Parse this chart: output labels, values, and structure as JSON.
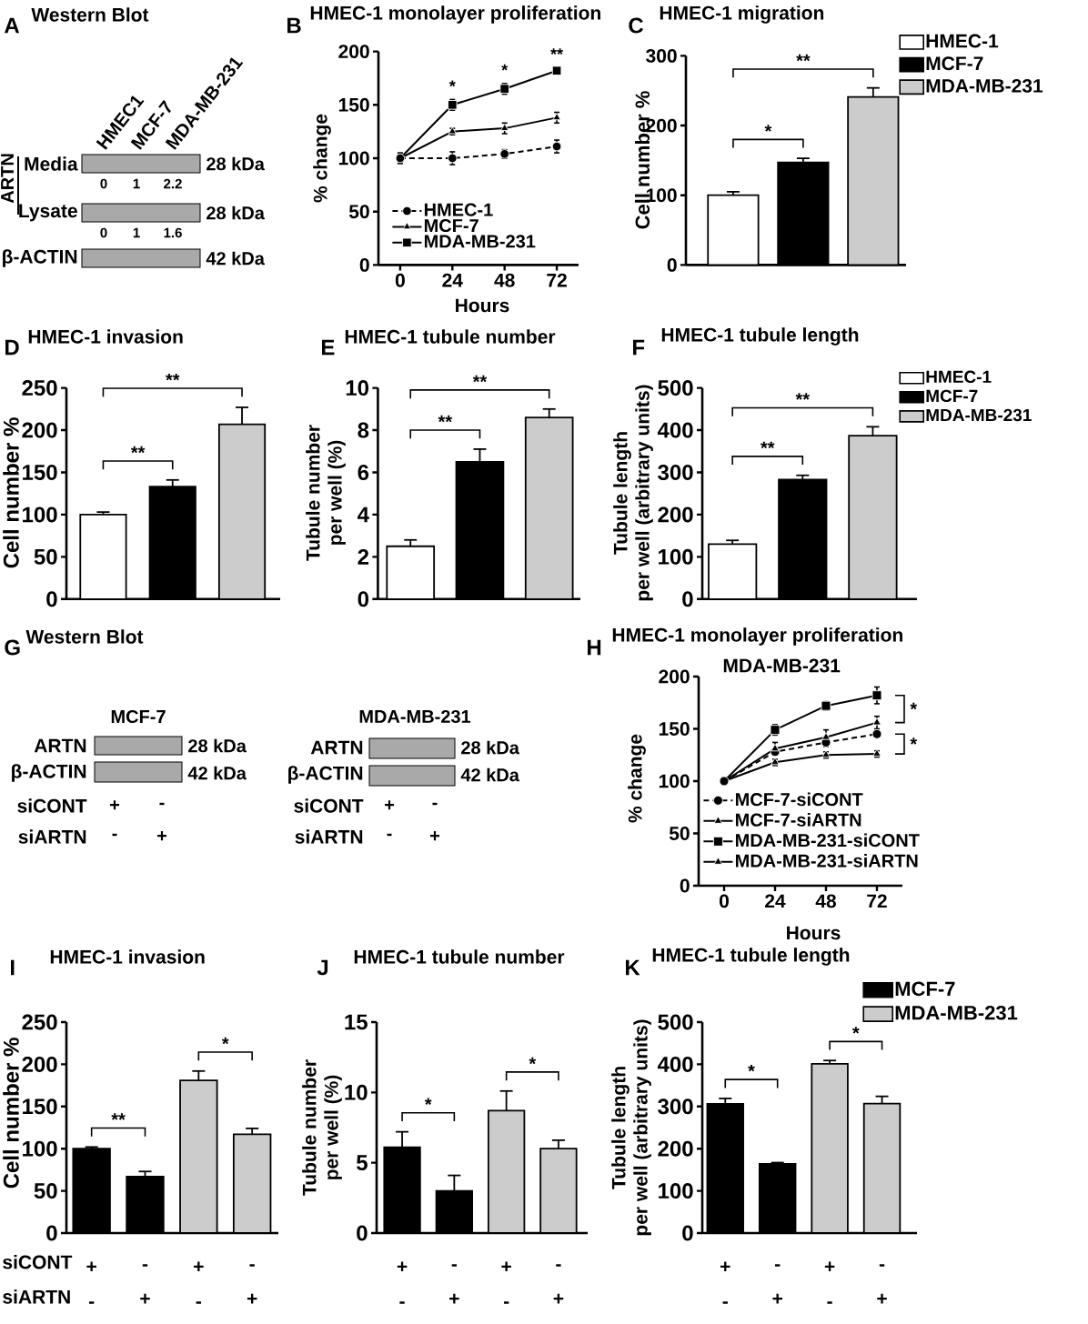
{
  "chart_data": [
    {
      "type": "other",
      "title": "Western Blot",
      "annotations": [
        "A",
        "HMEC1",
        "MCF-7",
        "MDA-MB-231",
        "ARTN",
        "Media",
        "28 kDa",
        "0",
        "1",
        "2.2",
        "Lysate",
        "28 kDa",
        "0",
        "1",
        "1.6",
        "β-ACTIN",
        "42 kDa"
      ]
    },
    {
      "type": "line",
      "title": "HMEC-1 monolayer proliferation",
      "xlabel": "Hours",
      "ylabel": "% change",
      "x": [
        0,
        24,
        48,
        72
      ],
      "xlim": [
        -10,
        82
      ],
      "xticks": [
        0,
        24,
        48,
        72
      ],
      "ylim": [
        0,
        200
      ],
      "yticks": [
        0,
        50,
        100,
        150,
        200
      ],
      "legend": "bottom left",
      "series": [
        {
          "name": "HMEC-1",
          "color": "#000000",
          "values": [
            100,
            100,
            104,
            111
          ],
          "errors": [
            5,
            6,
            4,
            6
          ],
          "marker": "circle",
          "line_style": "dashed"
        },
        {
          "name": "MCF-7",
          "color": "#000000",
          "values": [
            100,
            125,
            128,
            138
          ],
          "errors": [
            3,
            3,
            5,
            5
          ],
          "marker": "triangle",
          "line_style": "solid"
        },
        {
          "name": "MDA-MB-231",
          "color": "#000000",
          "values": [
            100,
            150,
            165,
            182
          ],
          "errors": [
            3,
            5,
            5,
            3
          ],
          "marker": "square",
          "line_style": "solid"
        }
      ],
      "annotations": [
        "B",
        "*",
        "*",
        "**"
      ]
    },
    {
      "type": "bar",
      "title": "HMEC-1 migration",
      "ylabel": "Cell number %",
      "categories": [
        null,
        null,
        null
      ],
      "ylim": [
        0,
        300
      ],
      "yticks": [
        0,
        100,
        200,
        300
      ],
      "tick_labels": "y",
      "legend": "right",
      "series": [
        {
          "name": "HMEC-1",
          "color": "#ffffff",
          "values": [
            100,
            null,
            null
          ],
          "errors": [
            5,
            null,
            null
          ]
        },
        {
          "name": "MCF-7",
          "color": "#000000",
          "values": [
            null,
            147,
            null
          ],
          "errors": [
            null,
            6,
            null
          ]
        },
        {
          "name": "MDA-MB-231",
          "color": "#cccccc",
          "values": [
            null,
            null,
            241
          ],
          "errors": [
            null,
            null,
            13
          ]
        }
      ],
      "annotations": [
        "C",
        "*",
        "**"
      ]
    },
    {
      "type": "bar",
      "title": "HMEC-1 invasion",
      "ylabel": "Cell number %",
      "categories": [
        null,
        null,
        null
      ],
      "values": [
        100,
        133,
        207
      ],
      "errors": [
        3,
        8,
        20
      ],
      "colors": [
        "#ffffff",
        "#000000",
        "#cccccc"
      ],
      "ylim": [
        0,
        250
      ],
      "yticks": [
        0,
        50,
        100,
        150,
        200,
        250
      ],
      "tick_labels": "y",
      "annotations": [
        "D",
        "**",
        "**"
      ]
    },
    {
      "type": "bar",
      "title": "HMEC-1 tubule number",
      "ylabel": "Tubule number\nper well (%)",
      "categories": [
        null,
        null,
        null
      ],
      "values": [
        2.5,
        6.5,
        8.6
      ],
      "errors": [
        0.3,
        0.6,
        0.4
      ],
      "colors": [
        "#ffffff",
        "#000000",
        "#cccccc"
      ],
      "ylim": [
        0,
        10
      ],
      "yticks": [
        0,
        2,
        4,
        6,
        8,
        10
      ],
      "tick_labels": "y",
      "annotations": [
        "E",
        "**",
        "**"
      ]
    },
    {
      "type": "bar",
      "title": "HMEC-1 tubule length",
      "ylabel": "Tubule length\nper well (arbitrary units)",
      "categories": [
        null,
        null,
        null
      ],
      "ylim": [
        0,
        500
      ],
      "yticks": [
        0,
        100,
        200,
        300,
        400,
        500
      ],
      "tick_labels": "y",
      "legend": "right",
      "series": [
        {
          "name": "HMEC-1",
          "color": "#ffffff",
          "values": [
            130,
            null,
            null
          ],
          "errors": [
            9,
            null,
            null
          ]
        },
        {
          "name": "MCF-7",
          "color": "#000000",
          "values": [
            null,
            283,
            null
          ],
          "errors": [
            null,
            10,
            null
          ]
        },
        {
          "name": "MDA-MB-231",
          "color": "#cccccc",
          "values": [
            null,
            null,
            387
          ],
          "errors": [
            null,
            null,
            21
          ]
        }
      ],
      "annotations": [
        "F",
        "**",
        "**"
      ]
    },
    {
      "type": "other",
      "title": "Western Blot",
      "annotations": [
        "G",
        "MCF-7",
        "ARTN",
        "28 kDa",
        "β-ACTIN",
        "42 kDa",
        "siCONT",
        "+",
        "-",
        "siARTN",
        "-",
        "+",
        "MDA-MB-231",
        "ARTN",
        "28 kDa",
        "β-ACTIN",
        "42 kDa",
        "siCONT",
        "+",
        "-",
        "siARTN",
        "-",
        "+"
      ]
    },
    {
      "type": "line",
      "title": "HMEC-1 monolayer proliferation",
      "subtitle": "MDA-MB-231",
      "xlabel": "Hours",
      "ylabel": "% change",
      "x": [
        0,
        24,
        48,
        72
      ],
      "xlim": [
        -12,
        84
      ],
      "xticks": [
        0,
        24,
        48,
        72
      ],
      "ylim": [
        0,
        200
      ],
      "yticks": [
        0,
        50,
        100,
        150,
        200
      ],
      "legend": "bottom",
      "series": [
        {
          "name": "MCF-7-siCONT",
          "color": "#000000",
          "values": [
            100,
            128,
            137,
            145
          ],
          "errors": [
            3,
            3,
            4,
            2
          ],
          "marker": "circle",
          "line_style": "dashed"
        },
        {
          "name": "MCF-7-siARTN",
          "color": "#000000",
          "values": [
            100,
            118,
            125,
            126
          ],
          "errors": [
            3,
            3,
            3,
            3
          ],
          "marker": "triangle",
          "line_style": "solid"
        },
        {
          "name": "MDA-MB-231-siCONT",
          "color": "#000000",
          "values": [
            100,
            149,
            172,
            182
          ],
          "errors": [
            3,
            5,
            4,
            8
          ],
          "marker": "square",
          "line_style": "solid"
        },
        {
          "name": "MDA-MB-231-siARTN",
          "color": "#000000",
          "values": [
            100,
            131,
            142,
            156
          ],
          "errors": [
            3,
            6,
            7,
            6
          ],
          "marker": "triangle",
          "line_style": "solid"
        }
      ],
      "annotations": [
        "H",
        "*",
        "*"
      ]
    },
    {
      "type": "bar",
      "title": "HMEC-1 invasion",
      "xlabel": "siCONT\nsiARTN",
      "ylabel": "Cell number %",
      "categories": [
        "+\n-",
        "-\n+",
        "+\n-",
        "-\n+"
      ],
      "values": [
        100,
        67,
        181,
        117
      ],
      "errors": [
        2,
        6,
        11,
        7
      ],
      "colors": [
        "#000000",
        "#000000",
        "#cccccc",
        "#cccccc"
      ],
      "ylim": [
        0,
        250
      ],
      "yticks": [
        0,
        50,
        100,
        150,
        200,
        250
      ],
      "annotations": [
        "I",
        "**",
        "*"
      ]
    },
    {
      "type": "bar",
      "title": "HMEC-1 tubule number",
      "ylabel": "Tubule number\nper well (%)",
      "categories": [
        "+\n-",
        "-\n+",
        "+\n-",
        "-\n+"
      ],
      "values": [
        6.1,
        3.0,
        8.7,
        6.0
      ],
      "errors": [
        1.1,
        1.1,
        1.4,
        0.6
      ],
      "colors": [
        "#000000",
        "#000000",
        "#cccccc",
        "#cccccc"
      ],
      "ylim": [
        0,
        15
      ],
      "yticks": [
        0,
        5,
        10,
        15
      ],
      "annotations": [
        "J",
        "*",
        "*"
      ]
    },
    {
      "type": "bar",
      "title": "HMEC-1 tubule length",
      "ylabel": "Tubule length\nper well (arbitrary units)",
      "categories": [
        "+\n-",
        "-\n+",
        "+\n-",
        "-\n+"
      ],
      "legend": "top right",
      "series": [
        {
          "name": "MCF-7",
          "color": "#000000",
          "values": [
            306,
            164,
            null,
            null
          ],
          "errors": [
            13,
            3,
            null,
            null
          ]
        },
        {
          "name": "MDA-MB-231",
          "color": "#cccccc",
          "values": [
            null,
            null,
            401,
            307
          ],
          "errors": [
            null,
            null,
            8,
            17
          ]
        }
      ],
      "ylim": [
        0,
        500
      ],
      "yticks": [
        0,
        100,
        200,
        300,
        400,
        500
      ],
      "annotations": [
        "K",
        "*",
        "*"
      ]
    }
  ]
}
